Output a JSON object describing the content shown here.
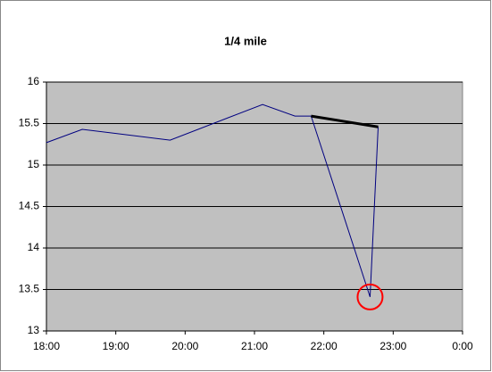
{
  "chart_data": {
    "type": "line",
    "title": "1/4 mile",
    "series": [
      {
        "color": "#000080",
        "width": 1,
        "x": [
          1080,
          1111,
          1187,
          1267,
          1295,
          1309,
          1360,
          1367
        ],
        "values": [
          15.27,
          15.43,
          15.3,
          15.73,
          15.59,
          15.59,
          13.41,
          15.46
        ]
      },
      {
        "color": "#000000",
        "width": 3,
        "x": [
          1309,
          1367
        ],
        "values": [
          15.59,
          15.46
        ]
      }
    ],
    "highlight": {
      "series": 0,
      "index": 6,
      "color": "#ff0000"
    },
    "xlim": [
      1080,
      1440
    ],
    "xticks": [
      {
        "value": 1080,
        "label": "18:00"
      },
      {
        "value": 1140,
        "label": "19:00"
      },
      {
        "value": 1200,
        "label": "20:00"
      },
      {
        "value": 1260,
        "label": "21:00"
      },
      {
        "value": 1320,
        "label": "22:00"
      },
      {
        "value": 1380,
        "label": "23:00"
      },
      {
        "value": 1440,
        "label": "0:00"
      }
    ],
    "ylim": [
      13,
      16
    ],
    "yticks": [
      13,
      13.5,
      14,
      14.5,
      15,
      15.5,
      16
    ],
    "grid": true
  }
}
